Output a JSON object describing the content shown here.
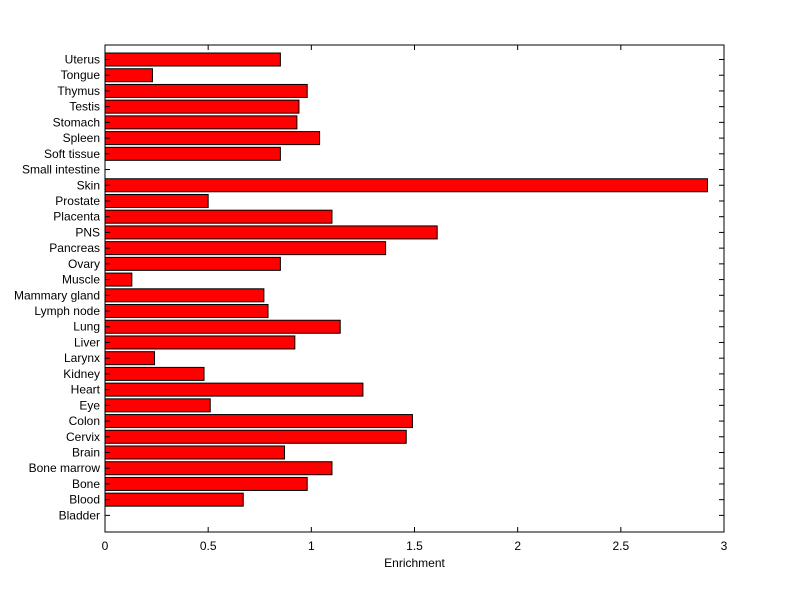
{
  "chart_data": {
    "type": "bar",
    "orientation": "horizontal",
    "categories": [
      "Uterus",
      "Tongue",
      "Thymus",
      "Testis",
      "Stomach",
      "Spleen",
      "Soft tissue",
      "Small intestine",
      "Skin",
      "Prostate",
      "Placenta",
      "PNS",
      "Pancreas",
      "Ovary",
      "Muscle",
      "Mammary gland",
      "Lymph node",
      "Lung",
      "Liver",
      "Larynx",
      "Kidney",
      "Heart",
      "Eye",
      "Colon",
      "Cervix",
      "Brain",
      "Bone marrow",
      "Bone",
      "Blood",
      "Bladder"
    ],
    "values": [
      0.85,
      0.23,
      0.98,
      0.94,
      0.93,
      1.04,
      0.85,
      0,
      2.92,
      0.5,
      1.1,
      1.61,
      1.36,
      0.85,
      0.13,
      0.77,
      0.79,
      1.14,
      0.92,
      0.24,
      0.48,
      1.25,
      0.51,
      1.49,
      1.46,
      0.87,
      1.1,
      0.98,
      0.67,
      0
    ],
    "xlabel": "Enrichment",
    "xlim": [
      0,
      3
    ],
    "xticks": [
      0,
      0.5,
      1,
      1.5,
      2,
      2.5,
      3
    ],
    "xtick_labels": [
      "0",
      "0.5",
      "1",
      "1.5",
      "2",
      "2.5",
      "3"
    ],
    "bar_color": "#ff0000",
    "grid": false
  }
}
